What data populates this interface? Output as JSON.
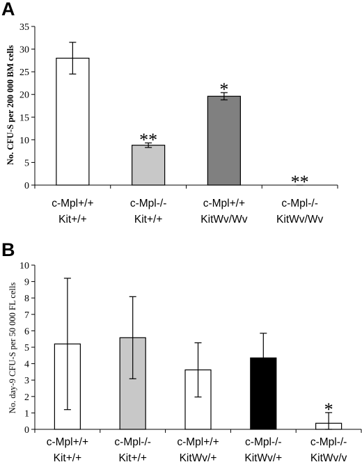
{
  "chart_data": [
    {
      "panel": "A",
      "type": "bar",
      "ylabel": "No. CFU-S per 200 000 BM cells",
      "ylim": [
        0,
        35
      ],
      "yticks": [
        0,
        5,
        10,
        15,
        20,
        25,
        30,
        35
      ],
      "grid": false,
      "categories": [
        [
          "c-Mpl+/+",
          "Kit+/+"
        ],
        [
          "c-Mpl-/-",
          "Kit+/+"
        ],
        [
          "c-Mpl+/+",
          "KitWv/Wv"
        ],
        [
          "c-Mpl-/-",
          "KitWv/Wv"
        ]
      ],
      "values": [
        28,
        8.8,
        19.6,
        0
      ],
      "errors": [
        3.5,
        0.5,
        0.8,
        0
      ],
      "colors": [
        "#ffffff",
        "#c8c8c8",
        "#808080",
        "#ffffff"
      ],
      "annotations": [
        "",
        "**",
        "*",
        "**"
      ]
    },
    {
      "panel": "B",
      "type": "bar",
      "ylabel": "No. day-9 CFU-S per 50 000 FL cells",
      "ylim": [
        0,
        10
      ],
      "yticks": [
        0,
        1,
        2,
        3,
        4,
        5,
        6,
        7,
        8,
        9,
        10
      ],
      "grid": false,
      "categories": [
        [
          "c-Mpl+/+",
          "Kit+/+"
        ],
        [
          "c-Mpl-/-",
          "Kit+/+"
        ],
        [
          "c-Mpl+/+",
          "KitWv/+"
        ],
        [
          "c-Mpl-/-",
          "KitWv/+"
        ],
        [
          "c-Mpl-/-",
          "KitWv/v"
        ]
      ],
      "values": [
        5.2,
        5.58,
        3.62,
        4.35,
        0.37
      ],
      "errors": [
        4.0,
        2.5,
        1.65,
        1.5,
        0.65
      ],
      "colors": [
        "#ffffff",
        "#c8c8c8",
        "#ffffff",
        "#000000",
        "#ffffff"
      ],
      "annotations": [
        "",
        "",
        "",
        "",
        "*"
      ]
    }
  ]
}
